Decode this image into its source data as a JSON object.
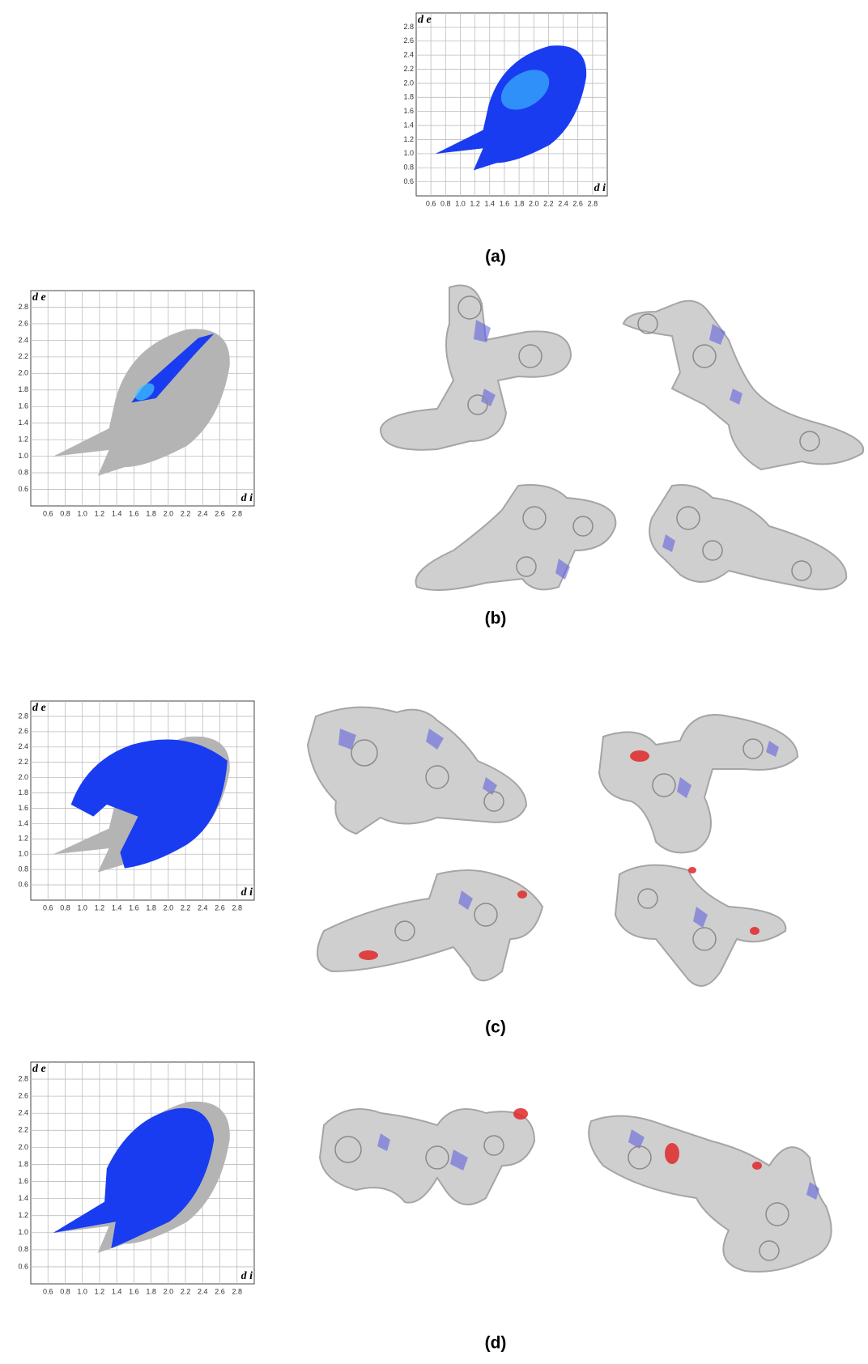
{
  "panels": [
    {
      "label": "(a)",
      "plot": {
        "x_label": "d i",
        "y_label": "d e",
        "xlim": [
          0.4,
          3.0
        ],
        "ylim": [
          0.4,
          3.0
        ],
        "xticks": [
          0.6,
          0.8,
          {
            "value": 1,
            "label": "1.0"
          },
          1.2,
          1.4,
          1.6,
          1.8,
          {
            "value": 2,
            "label": "2.0"
          },
          2.2,
          2.4,
          2.6,
          2.8
        ],
        "yticks": [
          0.6,
          0.8,
          {
            "value": 1,
            "label": "1.0"
          },
          1.2,
          1.4,
          1.6,
          1.8,
          {
            "value": 2,
            "label": "2.0"
          },
          2.2,
          2.4,
          2.6,
          2.8
        ]
      }
    },
    {
      "label": "(b)",
      "plot": {
        "x_label": "d i",
        "y_label": "d e",
        "xlim": [
          0.4,
          3.0
        ],
        "ylim": [
          0.4,
          3.0
        ],
        "xticks": [
          0.6,
          0.8,
          {
            "value": 1,
            "label": "1.0"
          },
          1.2,
          1.4,
          1.6,
          1.8,
          {
            "value": 2,
            "label": "2.0"
          },
          2.2,
          2.4,
          2.6,
          2.8
        ],
        "yticks": [
          0.6,
          0.8,
          {
            "value": 1,
            "label": "1.0"
          },
          1.2,
          1.4,
          1.6,
          1.8,
          {
            "value": 2,
            "label": "2.0"
          },
          2.2,
          2.4,
          2.6,
          2.8
        ]
      }
    },
    {
      "label": "(c)",
      "plot": {
        "x_label": "d i",
        "y_label": "d e",
        "xlim": [
          0.4,
          3.0
        ],
        "ylim": [
          0.4,
          3.0
        ],
        "xticks": [
          0.6,
          0.8,
          {
            "value": 1,
            "label": "1.0"
          },
          1.2,
          1.4,
          1.6,
          1.8,
          {
            "value": 2,
            "label": "2.0"
          },
          2.2,
          2.4,
          2.6,
          2.8
        ],
        "yticks": [
          0.6,
          0.8,
          {
            "value": 1,
            "label": "1.0"
          },
          1.2,
          1.4,
          1.6,
          1.8,
          {
            "value": 2,
            "label": "2.0"
          },
          2.2,
          2.4,
          2.6,
          2.8
        ]
      }
    },
    {
      "label": "(d)",
      "plot": {
        "x_label": "d i",
        "y_label": "d e",
        "xlim": [
          0.4,
          3.0
        ],
        "ylim": [
          0.4,
          3.0
        ],
        "xticks": [
          0.6,
          0.8,
          {
            "value": 1,
            "label": "1.0"
          },
          1.2,
          1.4,
          1.6,
          1.8,
          {
            "value": 2,
            "label": "2.0"
          },
          2.2,
          2.4,
          2.6,
          2.8
        ],
        "yticks": [
          0.6,
          0.8,
          {
            "value": 1,
            "label": "1.0"
          },
          1.2,
          1.4,
          1.6,
          1.8,
          {
            "value": 2,
            "label": "2.0"
          },
          2.2,
          2.4,
          2.6,
          2.8
        ]
      }
    }
  ]
}
